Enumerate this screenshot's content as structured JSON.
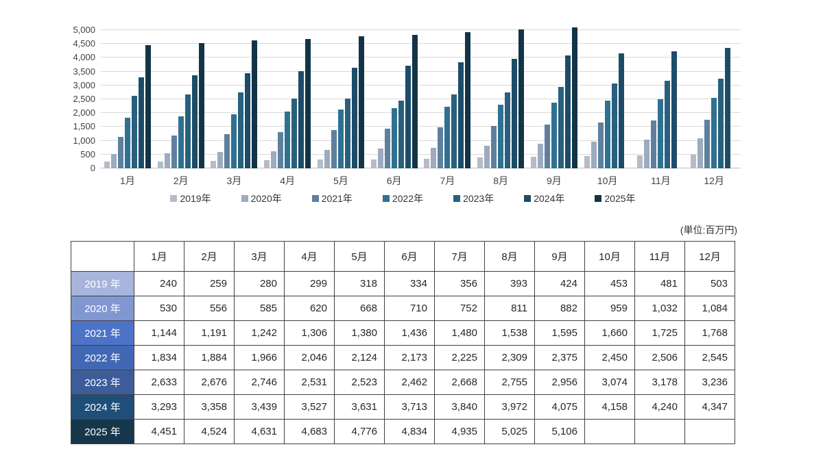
{
  "unit_label": "(単位:百万円)",
  "chart_data": {
    "type": "bar",
    "title": "",
    "xlabel": "",
    "ylabel": "",
    "ylim": [
      0,
      5000
    ],
    "ytick_step": 500,
    "grid": true,
    "legend_position": "bottom",
    "categories": [
      "1月",
      "2月",
      "3月",
      "4月",
      "5月",
      "6月",
      "7月",
      "8月",
      "9月",
      "10月",
      "11月",
      "12月"
    ],
    "series": [
      {
        "name": "2019年",
        "table_label": "2019 年",
        "bar_color": "#b5bcc7",
        "label_bg": "#a7b4dc",
        "values": [
          240,
          259,
          280,
          299,
          318,
          334,
          356,
          393,
          424,
          453,
          481,
          503
        ]
      },
      {
        "name": "2020年",
        "table_label": "2020 年",
        "bar_color": "#9dabbd",
        "label_bg": "#8097d0",
        "values": [
          530,
          556,
          585,
          620,
          668,
          710,
          752,
          811,
          882,
          959,
          1032,
          1084
        ]
      },
      {
        "name": "2021年",
        "table_label": "2021 年",
        "bar_color": "#5e809e",
        "label_bg": "#4d73c8",
        "values": [
          1144,
          1191,
          1242,
          1306,
          1380,
          1436,
          1480,
          1538,
          1595,
          1660,
          1725,
          1768
        ]
      },
      {
        "name": "2022年",
        "table_label": "2022 年",
        "bar_color": "#2f7191",
        "label_bg": "#4268b5",
        "values": [
          1834,
          1884,
          1966,
          2046,
          2124,
          2173,
          2225,
          2309,
          2375,
          2450,
          2506,
          2545
        ]
      },
      {
        "name": "2023年",
        "table_label": "2023 年",
        "bar_color": "#28607d",
        "label_bg": "#3c5d9a",
        "values": [
          2633,
          2676,
          2746,
          2531,
          2523,
          2462,
          2668,
          2755,
          2956,
          3074,
          3178,
          3236
        ]
      },
      {
        "name": "2024年",
        "table_label": "2024 年",
        "bar_color": "#1d4c68",
        "label_bg": "#1f4e79",
        "values": [
          3293,
          3358,
          3439,
          3527,
          3631,
          3713,
          3840,
          3972,
          4075,
          4158,
          4240,
          4347
        ]
      },
      {
        "name": "2025年",
        "table_label": "2025 年",
        "bar_color": "#123448",
        "label_bg": "#16374b",
        "values": [
          4451,
          4524,
          4631,
          4683,
          4776,
          4834,
          4935,
          5025,
          5106,
          null,
          null,
          null
        ]
      }
    ]
  },
  "table": {
    "corner_label": "",
    "col_headers": [
      "1月",
      "2月",
      "3月",
      "4月",
      "5月",
      "6月",
      "7月",
      "8月",
      "9月",
      "10月",
      "11月",
      "12月"
    ]
  }
}
